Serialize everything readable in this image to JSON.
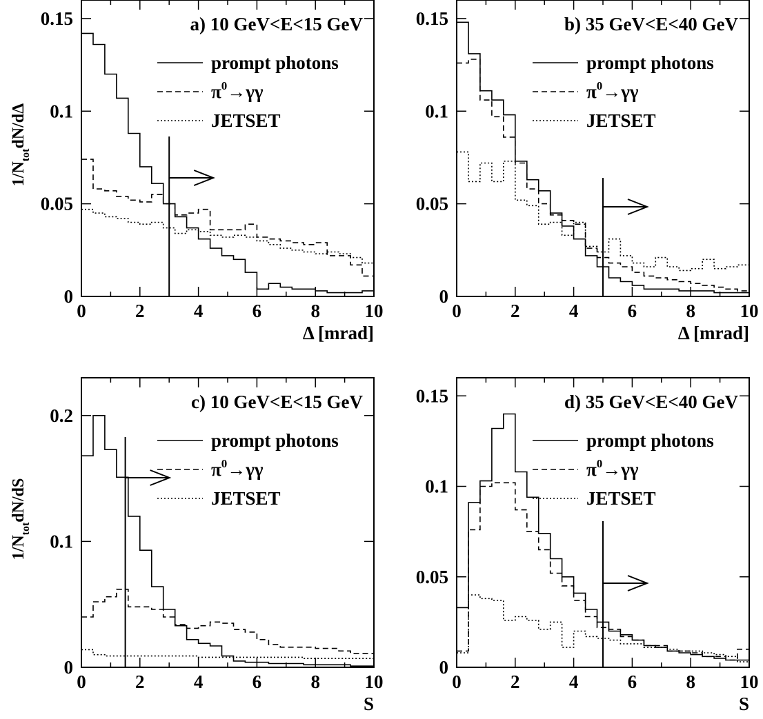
{
  "figure": {
    "panels": [
      {
        "id": "a",
        "title": "a)  10 GeV<E<15 GeV",
        "ylabel": {
          "pre": "1/N",
          "sub": "tot",
          "post": "dN/dΔ"
        },
        "xlabel": "Δ [mrad]",
        "xticks": [
          "0",
          "2",
          "4",
          "6",
          "8",
          "10"
        ],
        "yticks": [
          {
            "v": 0,
            "label": "0"
          },
          {
            "v": 0.05,
            "label": "0.05"
          },
          {
            "v": 0.1,
            "label": "0.1"
          },
          {
            "v": 0.15,
            "label": "0.15"
          }
        ]
      },
      {
        "id": "b",
        "title": "b)  35 GeV<E<40 GeV",
        "ylabel": null,
        "xlabel": "Δ [mrad]",
        "xticks": [
          "0",
          "2",
          "4",
          "6",
          "8",
          "10"
        ],
        "yticks": [
          {
            "v": 0,
            "label": "0"
          },
          {
            "v": 0.05,
            "label": "0.05"
          },
          {
            "v": 0.1,
            "label": "0.1"
          },
          {
            "v": 0.15,
            "label": "0.15"
          }
        ]
      },
      {
        "id": "c",
        "title": "c)  10 GeV<E<15 GeV",
        "ylabel": {
          "pre": "1/N",
          "sub": "tot",
          "post": "dN/dS"
        },
        "xlabel": "S",
        "xticks": [
          "0",
          "2",
          "4",
          "6",
          "8",
          "10"
        ],
        "yticks": [
          {
            "v": 0,
            "label": "0"
          },
          {
            "v": 0.1,
            "label": "0.1"
          },
          {
            "v": 0.2,
            "label": "0.2"
          }
        ]
      },
      {
        "id": "d",
        "title": "d)  35 GeV<E<40 GeV",
        "ylabel": null,
        "xlabel": "S",
        "xticks": [
          "0",
          "2",
          "4",
          "6",
          "8",
          "10"
        ],
        "yticks": [
          {
            "v": 0,
            "label": "0"
          },
          {
            "v": 0.05,
            "label": "0.05"
          },
          {
            "v": 0.1,
            "label": "0.1"
          },
          {
            "v": 0.15,
            "label": "0.15"
          }
        ]
      }
    ],
    "legend": [
      {
        "key": "prompt",
        "label": "prompt photons",
        "style": "solid"
      },
      {
        "key": "pi0",
        "label_pre": "π",
        "label_sup": "0",
        "label_post": "→γγ",
        "style": "dashed"
      },
      {
        "key": "jetset",
        "label": "JETSET",
        "style": "dotted"
      }
    ]
  },
  "chart_data": [
    {
      "type": "histogram",
      "title": "a)  10 GeV<E<15 GeV",
      "xlabel": "Δ [mrad]",
      "ylabel": "1/Ntot dN/dΔ",
      "xlim": [
        0,
        10
      ],
      "ylim": [
        0,
        0.16
      ],
      "bin_width": 0.4,
      "cut": {
        "x": 3,
        "direction": "right"
      },
      "series": [
        {
          "name": "prompt photons",
          "style": "solid",
          "values": [
            0.142,
            0.136,
            0.12,
            0.107,
            0.088,
            0.07,
            0.061,
            0.05,
            0.043,
            0.037,
            0.031,
            0.026,
            0.022,
            0.02,
            0.013,
            0.004,
            0.007,
            0.005,
            0.004,
            0.004,
            0.003,
            0.002,
            0.002,
            0.002,
            0.003
          ]
        },
        {
          "name": "π0→γγ",
          "style": "dashed",
          "values": [
            0.074,
            0.058,
            0.057,
            0.054,
            0.052,
            0.051,
            0.055,
            0.05,
            0.044,
            0.045,
            0.047,
            0.036,
            0.036,
            0.036,
            0.039,
            0.032,
            0.031,
            0.03,
            0.029,
            0.028,
            0.029,
            0.022,
            0.022,
            0.017,
            0.011
          ]
        },
        {
          "name": "JETSET",
          "style": "dotted",
          "values": [
            0.047,
            0.045,
            0.043,
            0.042,
            0.04,
            0.039,
            0.04,
            0.037,
            0.034,
            0.036,
            0.035,
            0.033,
            0.032,
            0.033,
            0.032,
            0.03,
            0.028,
            0.026,
            0.025,
            0.024,
            0.023,
            0.024,
            0.023,
            0.021,
            0.018
          ]
        }
      ]
    },
    {
      "type": "histogram",
      "title": "b)  35 GeV<E<40 GeV",
      "xlabel": "Δ [mrad]",
      "ylabel": "",
      "xlim": [
        0,
        10
      ],
      "ylim": [
        0,
        0.16
      ],
      "bin_width": 0.4,
      "cut": {
        "x": 5,
        "direction": "right"
      },
      "series": [
        {
          "name": "prompt photons",
          "style": "solid",
          "values": [
            0.148,
            0.131,
            0.111,
            0.106,
            0.098,
            0.073,
            0.063,
            0.057,
            0.045,
            0.038,
            0.031,
            0.022,
            0.016,
            0.01,
            0.008,
            0.006,
            0.004,
            0.004,
            0.004,
            0.003,
            0.003,
            0.003,
            0.002,
            0.002,
            0.002
          ]
        },
        {
          "name": "π0→γγ",
          "style": "dashed",
          "values": [
            0.126,
            0.128,
            0.106,
            0.097,
            0.086,
            0.072,
            0.058,
            0.05,
            0.044,
            0.041,
            0.039,
            0.026,
            0.021,
            0.018,
            0.016,
            0.013,
            0.011,
            0.01,
            0.009,
            0.008,
            0.007,
            0.006,
            0.005,
            0.004,
            0.003
          ]
        },
        {
          "name": "JETSET",
          "style": "dotted",
          "values": [
            0.078,
            0.062,
            0.072,
            0.062,
            0.073,
            0.052,
            0.049,
            0.039,
            0.04,
            0.033,
            0.04,
            0.027,
            0.024,
            0.031,
            0.022,
            0.018,
            0.016,
            0.021,
            0.016,
            0.014,
            0.015,
            0.02,
            0.015,
            0.016,
            0.017
          ]
        }
      ]
    },
    {
      "type": "histogram",
      "title": "c)  10 GeV<E<15 GeV",
      "xlabel": "S",
      "ylabel": "1/Ntot dN/dS",
      "xlim": [
        0,
        10
      ],
      "ylim": [
        0,
        0.23
      ],
      "bin_width": 0.4,
      "cut": {
        "x": 1.5,
        "direction": "right"
      },
      "series": [
        {
          "name": "prompt photons",
          "style": "solid",
          "values": [
            0.168,
            0.2,
            0.173,
            0.151,
            0.12,
            0.093,
            0.064,
            0.046,
            0.033,
            0.022,
            0.019,
            0.017,
            0.009,
            0.005,
            0.004,
            0.004,
            0.003,
            0.003,
            0.003,
            0.002,
            0.002,
            0.002,
            0.002,
            0.001,
            0.001
          ]
        },
        {
          "name": "π0→γγ",
          "style": "dashed",
          "values": [
            0.04,
            0.052,
            0.056,
            0.062,
            0.048,
            0.048,
            0.046,
            0.04,
            0.034,
            0.031,
            0.033,
            0.036,
            0.035,
            0.03,
            0.028,
            0.022,
            0.018,
            0.016,
            0.016,
            0.016,
            0.015,
            0.015,
            0.013,
            0.011,
            0.011
          ]
        },
        {
          "name": "JETSET",
          "style": "dotted",
          "values": [
            0.014,
            0.01,
            0.009,
            0.009,
            0.009,
            0.009,
            0.009,
            0.009,
            0.009,
            0.009,
            0.008,
            0.008,
            0.008,
            0.008,
            0.008,
            0.008,
            0.008,
            0.008,
            0.008,
            0.007,
            0.007,
            0.007,
            0.007,
            0.007,
            0.007
          ]
        }
      ]
    },
    {
      "type": "histogram",
      "title": "d)  35 GeV<E<40 GeV",
      "xlabel": "S",
      "ylabel": "",
      "xlim": [
        0,
        10
      ],
      "ylim": [
        0,
        0.16
      ],
      "bin_width": 0.4,
      "cut": {
        "x": 5,
        "direction": "right"
      },
      "series": [
        {
          "name": "prompt photons",
          "style": "solid",
          "values": [
            0.033,
            0.091,
            0.103,
            0.132,
            0.14,
            0.108,
            0.094,
            0.074,
            0.06,
            0.05,
            0.041,
            0.032,
            0.025,
            0.02,
            0.018,
            0.015,
            0.012,
            0.011,
            0.009,
            0.008,
            0.007,
            0.006,
            0.005,
            0.004,
            0.004
          ]
        },
        {
          "name": "π0→γγ",
          "style": "dashed",
          "values": [
            0.009,
            0.076,
            0.1,
            0.102,
            0.102,
            0.087,
            0.075,
            0.065,
            0.052,
            0.045,
            0.037,
            0.028,
            0.022,
            0.021,
            0.017,
            0.015,
            0.012,
            0.012,
            0.009,
            0.009,
            0.008,
            0.006,
            0.006,
            0.004,
            0.01
          ]
        },
        {
          "name": "JETSET",
          "style": "dotted",
          "values": [
            0.008,
            0.04,
            0.038,
            0.037,
            0.026,
            0.028,
            0.026,
            0.021,
            0.025,
            0.011,
            0.02,
            0.017,
            0.016,
            0.015,
            0.013,
            0.013,
            0.011,
            0.011,
            0.01,
            0.009,
            0.009,
            0.008,
            0.007,
            0.006,
            0.003
          ]
        }
      ]
    }
  ]
}
